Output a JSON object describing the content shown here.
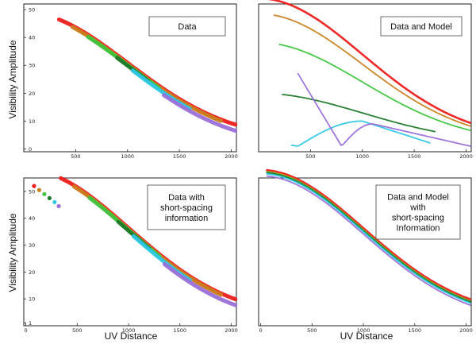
{
  "figure": {
    "ylabel": "Visibility Amplitude",
    "xlabel": "UV Distance",
    "colors": {
      "red": "#ee1c1c",
      "orange": "#c8801e",
      "green": "#3ec43e",
      "darkgreen": "#1f7a2a",
      "cyan": "#2ec8e6",
      "purple": "#9a6fd8"
    }
  },
  "chart_data": [
    {
      "type": "scatter",
      "panel": "top-left",
      "legend": "Data",
      "legend_placement": "top-right",
      "xlim": [
        0,
        2050
      ],
      "ylim": [
        -1,
        52
      ],
      "xticks": [
        500,
        1000,
        1500,
        2000
      ],
      "yticks": [
        0,
        10,
        20,
        30,
        40,
        50
      ],
      "xtick_labels": [
        "500",
        "1000",
        "1500",
        "2000"
      ],
      "ytick_labels": [
        "0",
        "10",
        "20",
        "30",
        "40",
        "50"
      ],
      "series": [
        {
          "color": "red",
          "x_range": [
            340,
            2040
          ],
          "amplitude_peak": 46,
          "scale": 1000,
          "floor": 3.0
        },
        {
          "color": "orange",
          "x_range": [
            470,
            1900
          ],
          "amplitude_peak": 46,
          "scale": 1000,
          "floor": 2.5
        },
        {
          "color": "green",
          "x_range": [
            620,
            1300
          ],
          "amplitude_peak": 46,
          "scale": 1000,
          "floor": 2.2
        },
        {
          "color": "darkgreen",
          "x_range": [
            900,
            1200
          ],
          "amplitude_peak": 46,
          "scale": 1000,
          "floor": 2.0
        },
        {
          "color": "cyan",
          "x_range": [
            1050,
            1600
          ],
          "amplitude_peak": 46,
          "scale": 1000,
          "floor": 1.6
        },
        {
          "color": "purple",
          "x_range": [
            1350,
            2040
          ],
          "amplitude_peak": 46,
          "scale": 1000,
          "floor": 0.8
        }
      ]
    },
    {
      "type": "line",
      "panel": "top-right",
      "legend": "Data and Model",
      "legend_placement": "top-right",
      "xlim": [
        0,
        2050
      ],
      "ylim": [
        -1,
        52
      ],
      "xticks": [
        500,
        1000,
        1500,
        2000
      ],
      "yticks": [],
      "xtick_labels": [
        "500",
        "1000",
        "1500",
        "2000"
      ],
      "ytick_labels": [],
      "series": [
        {
          "color": "red",
          "x_range": [
            100,
            2040
          ],
          "amplitude_peak": 51,
          "scale": 1000,
          "floor": 3.0
        },
        {
          "color": "orange",
          "x_range": [
            150,
            2040
          ],
          "amplitude_peak": 46,
          "scale": 1000,
          "floor": 2.5
        },
        {
          "color": "green",
          "x_range": [
            200,
            2040
          ],
          "amplitude_peak": 36,
          "scale": 1000,
          "floor": 2.2
        },
        {
          "color": "darkgreen",
          "x_range": [
            230,
            1700
          ],
          "amplitude_peak": 18,
          "scale": 1000,
          "floor": 2.0
        },
        {
          "color": "cyan",
          "x_range": [
            320,
            1650
          ],
          "notes": "dips near x=380 then rises to ~10 near x=1000"
        },
        {
          "color": "purple",
          "x_range": [
            380,
            2040
          ],
          "notes": "dips near x=800 then rises to ~9 near x=1100"
        }
      ]
    },
    {
      "type": "scatter",
      "panel": "bottom-left",
      "legend": "Data with short-spacing information",
      "legend_lines": [
        "Data with",
        "short-spacing",
        "information"
      ],
      "legend_placement": "top-right",
      "xlim": [
        -20,
        2050
      ],
      "ylim": [
        0,
        55
      ],
      "xticks": [
        0,
        500,
        1000,
        1500,
        2000
      ],
      "yticks": [
        1,
        10,
        20,
        30,
        40,
        50
      ],
      "xtick_labels": [
        "0",
        "500",
        "1000",
        "1500",
        "2000"
      ],
      "ytick_labels": [
        "1",
        "10",
        "20",
        "30",
        "40",
        "50"
      ],
      "short_spacing_points": [
        {
          "x": 80,
          "y": 52,
          "color": "red"
        },
        {
          "x": 130,
          "y": 50.5,
          "color": "orange"
        },
        {
          "x": 180,
          "y": 49,
          "color": "green"
        },
        {
          "x": 230,
          "y": 47.5,
          "color": "darkgreen"
        },
        {
          "x": 280,
          "y": 46,
          "color": "cyan"
        },
        {
          "x": 320,
          "y": 44.5,
          "color": "purple"
        }
      ],
      "series": [
        {
          "color": "red",
          "x_range": [
            340,
            2040
          ],
          "amplitude_peak": 55,
          "scale": 1000,
          "floor": 3.0
        },
        {
          "color": "orange",
          "x_range": [
            470,
            1900
          ],
          "amplitude_peak": 55,
          "scale": 1000,
          "floor": 2.5
        },
        {
          "color": "green",
          "x_range": [
            620,
            1300
          ],
          "amplitude_peak": 55,
          "scale": 1000,
          "floor": 2.2
        },
        {
          "color": "darkgreen",
          "x_range": [
            900,
            1200
          ],
          "amplitude_peak": 55,
          "scale": 1000,
          "floor": 2.0
        },
        {
          "color": "cyan",
          "x_range": [
            1050,
            1600
          ],
          "amplitude_peak": 55,
          "scale": 1000,
          "floor": 1.6
        },
        {
          "color": "purple",
          "x_range": [
            1350,
            2040
          ],
          "amplitude_peak": 55,
          "scale": 1000,
          "floor": 0.8
        }
      ]
    },
    {
      "type": "line",
      "panel": "bottom-right",
      "legend": "Data and Model with short-spacing Information",
      "legend_lines": [
        "Data and Model",
        "with",
        "short-spacing",
        "Information"
      ],
      "legend_placement": "top-right",
      "xlim": [
        -20,
        2050
      ],
      "ylim": [
        0,
        55
      ],
      "xticks": [
        0,
        500,
        1000,
        1500,
        2000
      ],
      "yticks": [],
      "xtick_labels": [
        "0",
        "500",
        "1000",
        "1500",
        "2000"
      ],
      "ytick_labels": [],
      "series": [
        {
          "color": "red",
          "x_range": [
            60,
            2040
          ],
          "amplitude_peak": 55,
          "scale": 1000,
          "floor": 3.0
        },
        {
          "color": "orange",
          "x_range": [
            60,
            2040
          ],
          "amplitude_peak": 55,
          "scale": 1000,
          "floor": 2.5
        },
        {
          "color": "green",
          "x_range": [
            60,
            2040
          ],
          "amplitude_peak": 55,
          "scale": 1000,
          "floor": 2.2
        },
        {
          "color": "darkgreen",
          "x_range": [
            60,
            2040
          ],
          "amplitude_peak": 55,
          "scale": 1000,
          "floor": 2.0
        },
        {
          "color": "cyan",
          "x_range": [
            60,
            2040
          ],
          "amplitude_peak": 55,
          "scale": 1000,
          "floor": 1.6
        },
        {
          "color": "purple",
          "x_range": [
            60,
            2040
          ],
          "amplitude_peak": 55,
          "scale": 1000,
          "floor": 0.8
        }
      ]
    }
  ]
}
